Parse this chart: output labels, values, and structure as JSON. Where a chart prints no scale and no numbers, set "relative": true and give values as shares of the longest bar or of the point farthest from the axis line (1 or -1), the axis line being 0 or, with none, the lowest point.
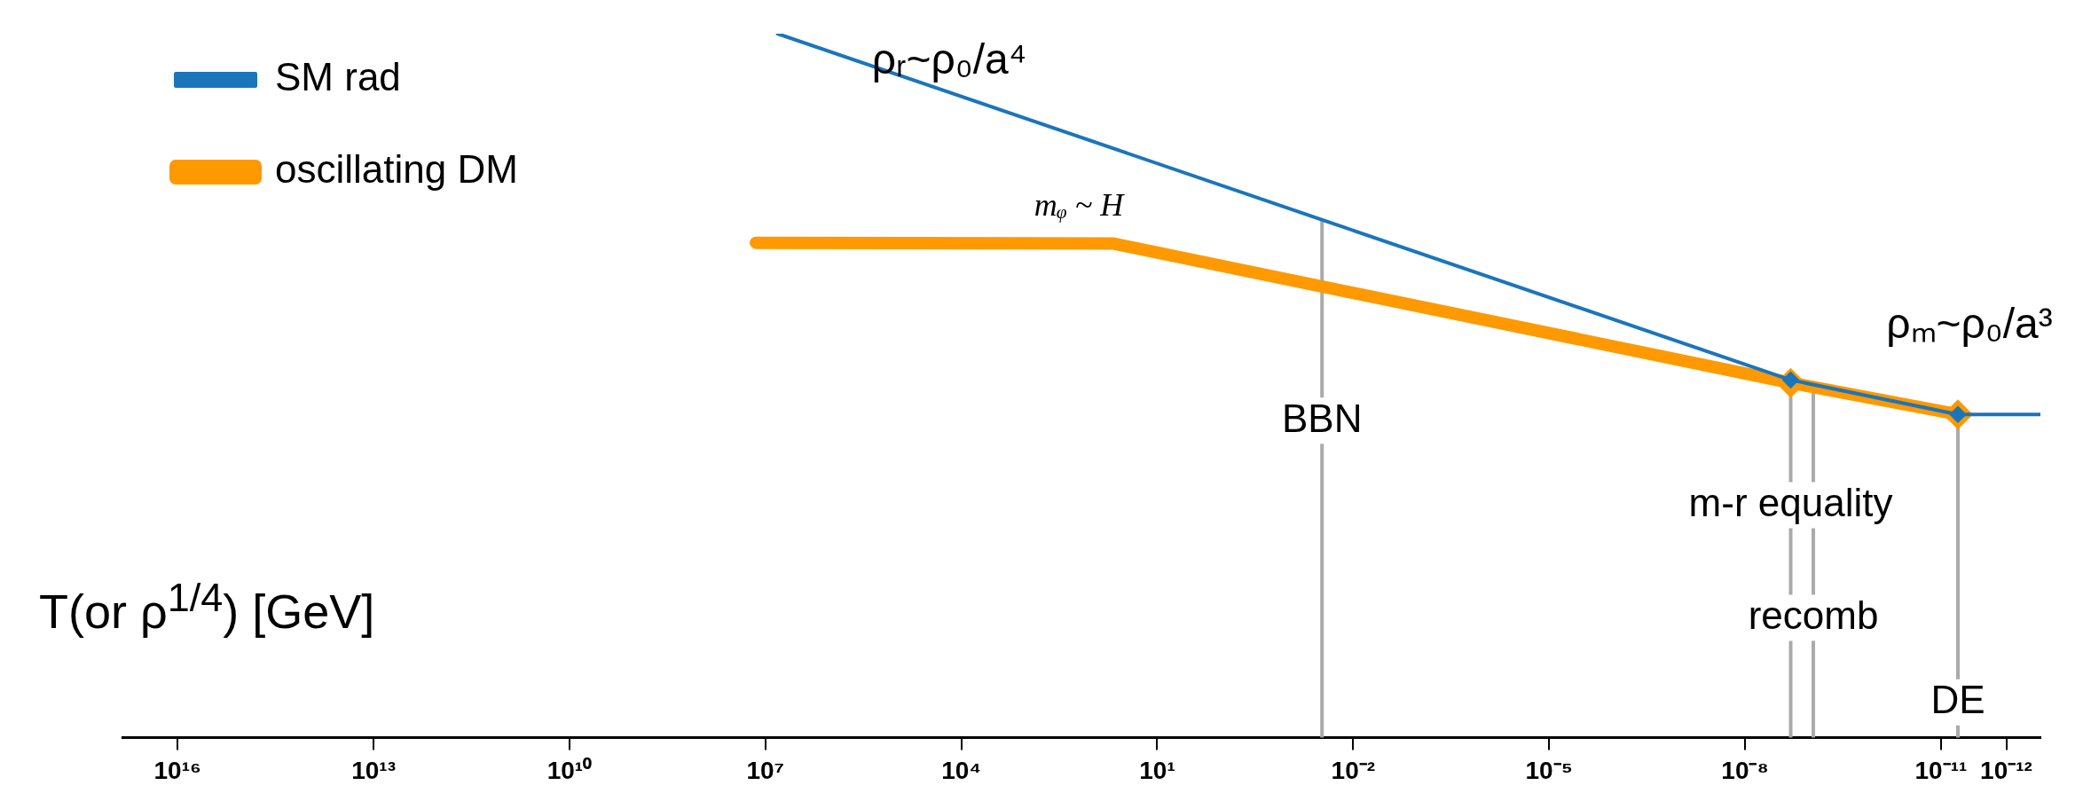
{
  "chart_data": {
    "type": "line",
    "xlabel": "T(or ρ$^{1/4}$) [GeV]",
    "relative": true,
    "log": "x",
    "legend": "top left",
    "marker": "diamond",
    "line_style": "solid",
    "xlim": [
      7e+16,
      3e-13
    ],
    "xticks": [
      {
        "value": 1e+16,
        "label": "10¹⁶"
      },
      {
        "value": 10000000000000.0,
        "label": "10¹³"
      },
      {
        "value": 10000000000.0,
        "label": "10¹⁰"
      },
      {
        "value": 10000000.0,
        "label": "10⁷"
      },
      {
        "value": 10000.0,
        "label": "10⁴"
      },
      {
        "value": 10,
        "label": "10¹"
      },
      {
        "value": 0.01,
        "label": "10⁻²"
      },
      {
        "value": 1e-05,
        "label": "10⁻⁵"
      },
      {
        "value": 1e-08,
        "label": "10⁻⁸"
      },
      {
        "value": 1e-11,
        "label": "10⁻¹¹"
      },
      {
        "value": 1e-12,
        "label": "10⁻¹²"
      }
    ],
    "series": [
      {
        "name": "SM rad",
        "color": "#1b75bb",
        "x": [
          6500000.0,
          2e-09,
          5.5e-12,
          3e-13
        ],
        "values": [
          1,
          0.508,
          0.459,
          0.459
        ]
      },
      {
        "name": "oscillating DM",
        "color": "#ff9900",
        "x": [
          14000000.0,
          48,
          2e-09,
          5.5e-12
        ],
        "values": [
          0.703,
          0.702,
          0.504,
          0.459
        ]
      }
    ],
    "ref_lines": [
      {
        "axis": "x",
        "value": 0.03,
        "label": "BBN",
        "color": "#aaaaaa"
      },
      {
        "axis": "x",
        "value": 2e-09,
        "label": "m-r equality",
        "color": "#aaaaaa"
      },
      {
        "axis": "x",
        "value": 9e-10,
        "label": "recomb",
        "color": "#aaaaaa"
      },
      {
        "axis": "x",
        "value": 5.5e-12,
        "label": "DE",
        "color": "#aaaaaa"
      }
    ],
    "annotations": [
      "ρᵣ~ρ₀/a⁴",
      "ρₘ~ρ₀/a³",
      "mᵩ ~ H"
    ]
  }
}
